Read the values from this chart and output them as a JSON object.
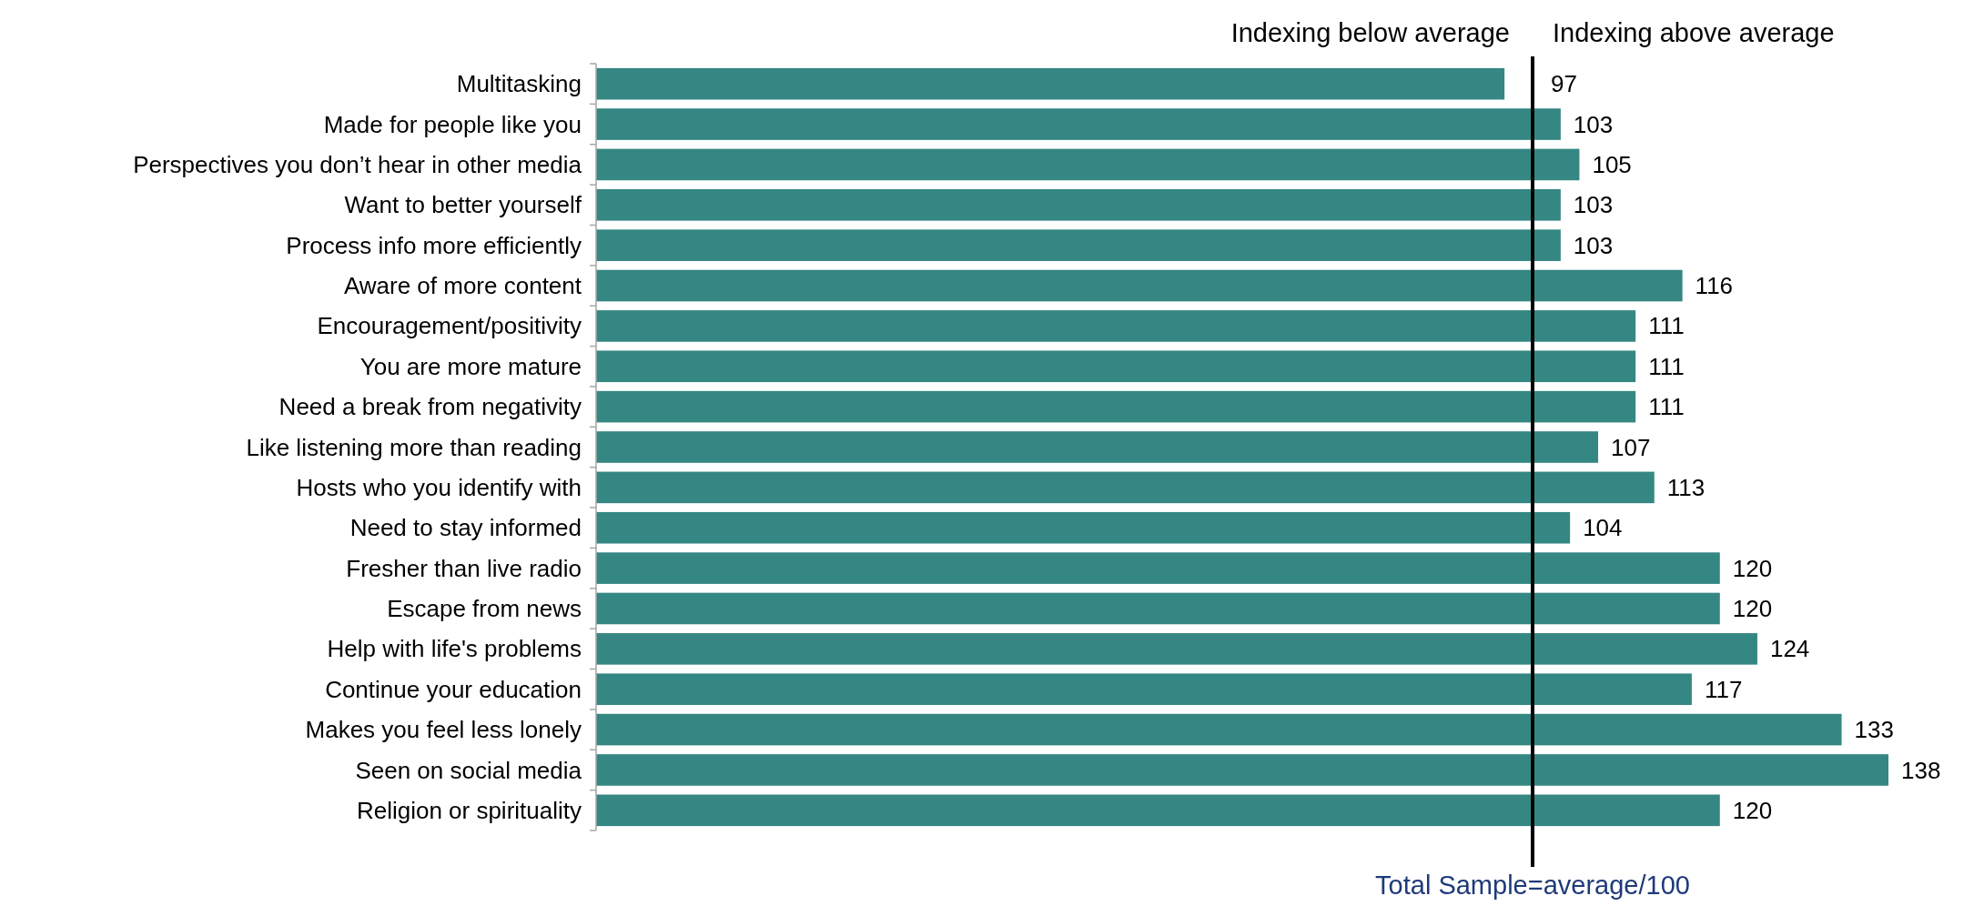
{
  "chart_data": {
    "type": "bar",
    "orientation": "horizontal",
    "categories": [
      "Multitasking",
      "Made for people like you",
      "Perspectives you don’t hear in other media",
      "Want to better yourself",
      "Process info more efficiently",
      "Aware of more content",
      "Encouragement/positivity",
      "You are more mature",
      "Need a break from negativity",
      "Like listening more than reading",
      "Hosts who you identify with",
      "Need to stay informed",
      "Fresher than live radio",
      "Escape from news",
      "Help with life's problems",
      "Continue your education",
      "Makes you feel less lonely",
      "Seen on social media",
      "Religion or spirituality"
    ],
    "values": [
      97,
      103,
      105,
      103,
      103,
      116,
      111,
      111,
      111,
      107,
      113,
      104,
      120,
      120,
      124,
      117,
      133,
      138,
      120
    ],
    "color": "#358783",
    "data_labels": true,
    "tick_labels": "y",
    "ref_lines": [
      {
        "axis": "x",
        "value": 100,
        "label": "Total Sample=average/100",
        "color": "#000000"
      }
    ],
    "annotations": [
      "Indexing below average",
      "Indexing above average"
    ]
  }
}
